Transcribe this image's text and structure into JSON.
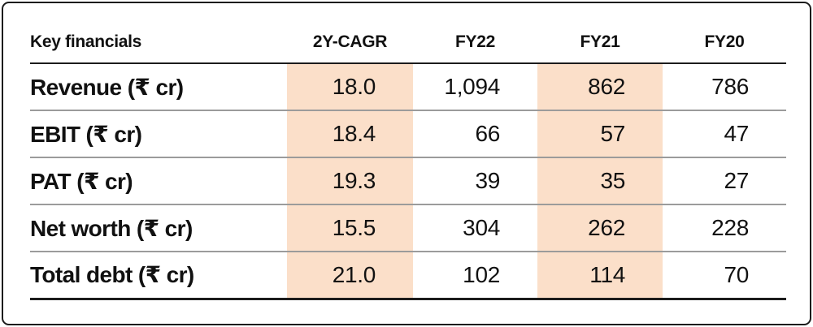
{
  "table": {
    "headers": [
      "Key financials",
      "2Y-CAGR",
      "FY22",
      "FY21",
      "FY20"
    ],
    "rows": [
      {
        "label": "Revenue (₹ cr)",
        "values": [
          "18.0",
          "1,094",
          "862",
          "786"
        ]
      },
      {
        "label": "EBIT (₹ cr)",
        "values": [
          "18.4",
          "66",
          "57",
          "47"
        ]
      },
      {
        "label": "PAT (₹ cr)",
        "values": [
          "19.3",
          "39",
          "35",
          "27"
        ]
      },
      {
        "label": "Net worth (₹ cr)",
        "values": [
          "15.5",
          "304",
          "262",
          "228"
        ]
      },
      {
        "label": "Total debt (₹ cr)",
        "values": [
          "21.0",
          "102",
          "114",
          "70"
        ]
      }
    ],
    "highlighted_columns": [
      "2Y-CAGR",
      "FY21"
    ],
    "highlight_color": "#fbdfc9"
  },
  "chart_data": {
    "type": "table",
    "title": "Key financials",
    "columns": [
      "Key financials",
      "2Y-CAGR",
      "FY22",
      "FY21",
      "FY20"
    ],
    "rows": [
      [
        "Revenue (₹ cr)",
        18.0,
        1094,
        862,
        786
      ],
      [
        "EBIT (₹ cr)",
        18.4,
        66,
        57,
        47
      ],
      [
        "PAT (₹ cr)",
        19.3,
        39,
        35,
        27
      ],
      [
        "Net worth (₹ cr)",
        15.5,
        304,
        262,
        228
      ],
      [
        "Total debt (₹ cr)",
        21.0,
        102,
        114,
        70
      ]
    ],
    "highlighted_columns": [
      "2Y-CAGR",
      "FY21"
    ]
  }
}
